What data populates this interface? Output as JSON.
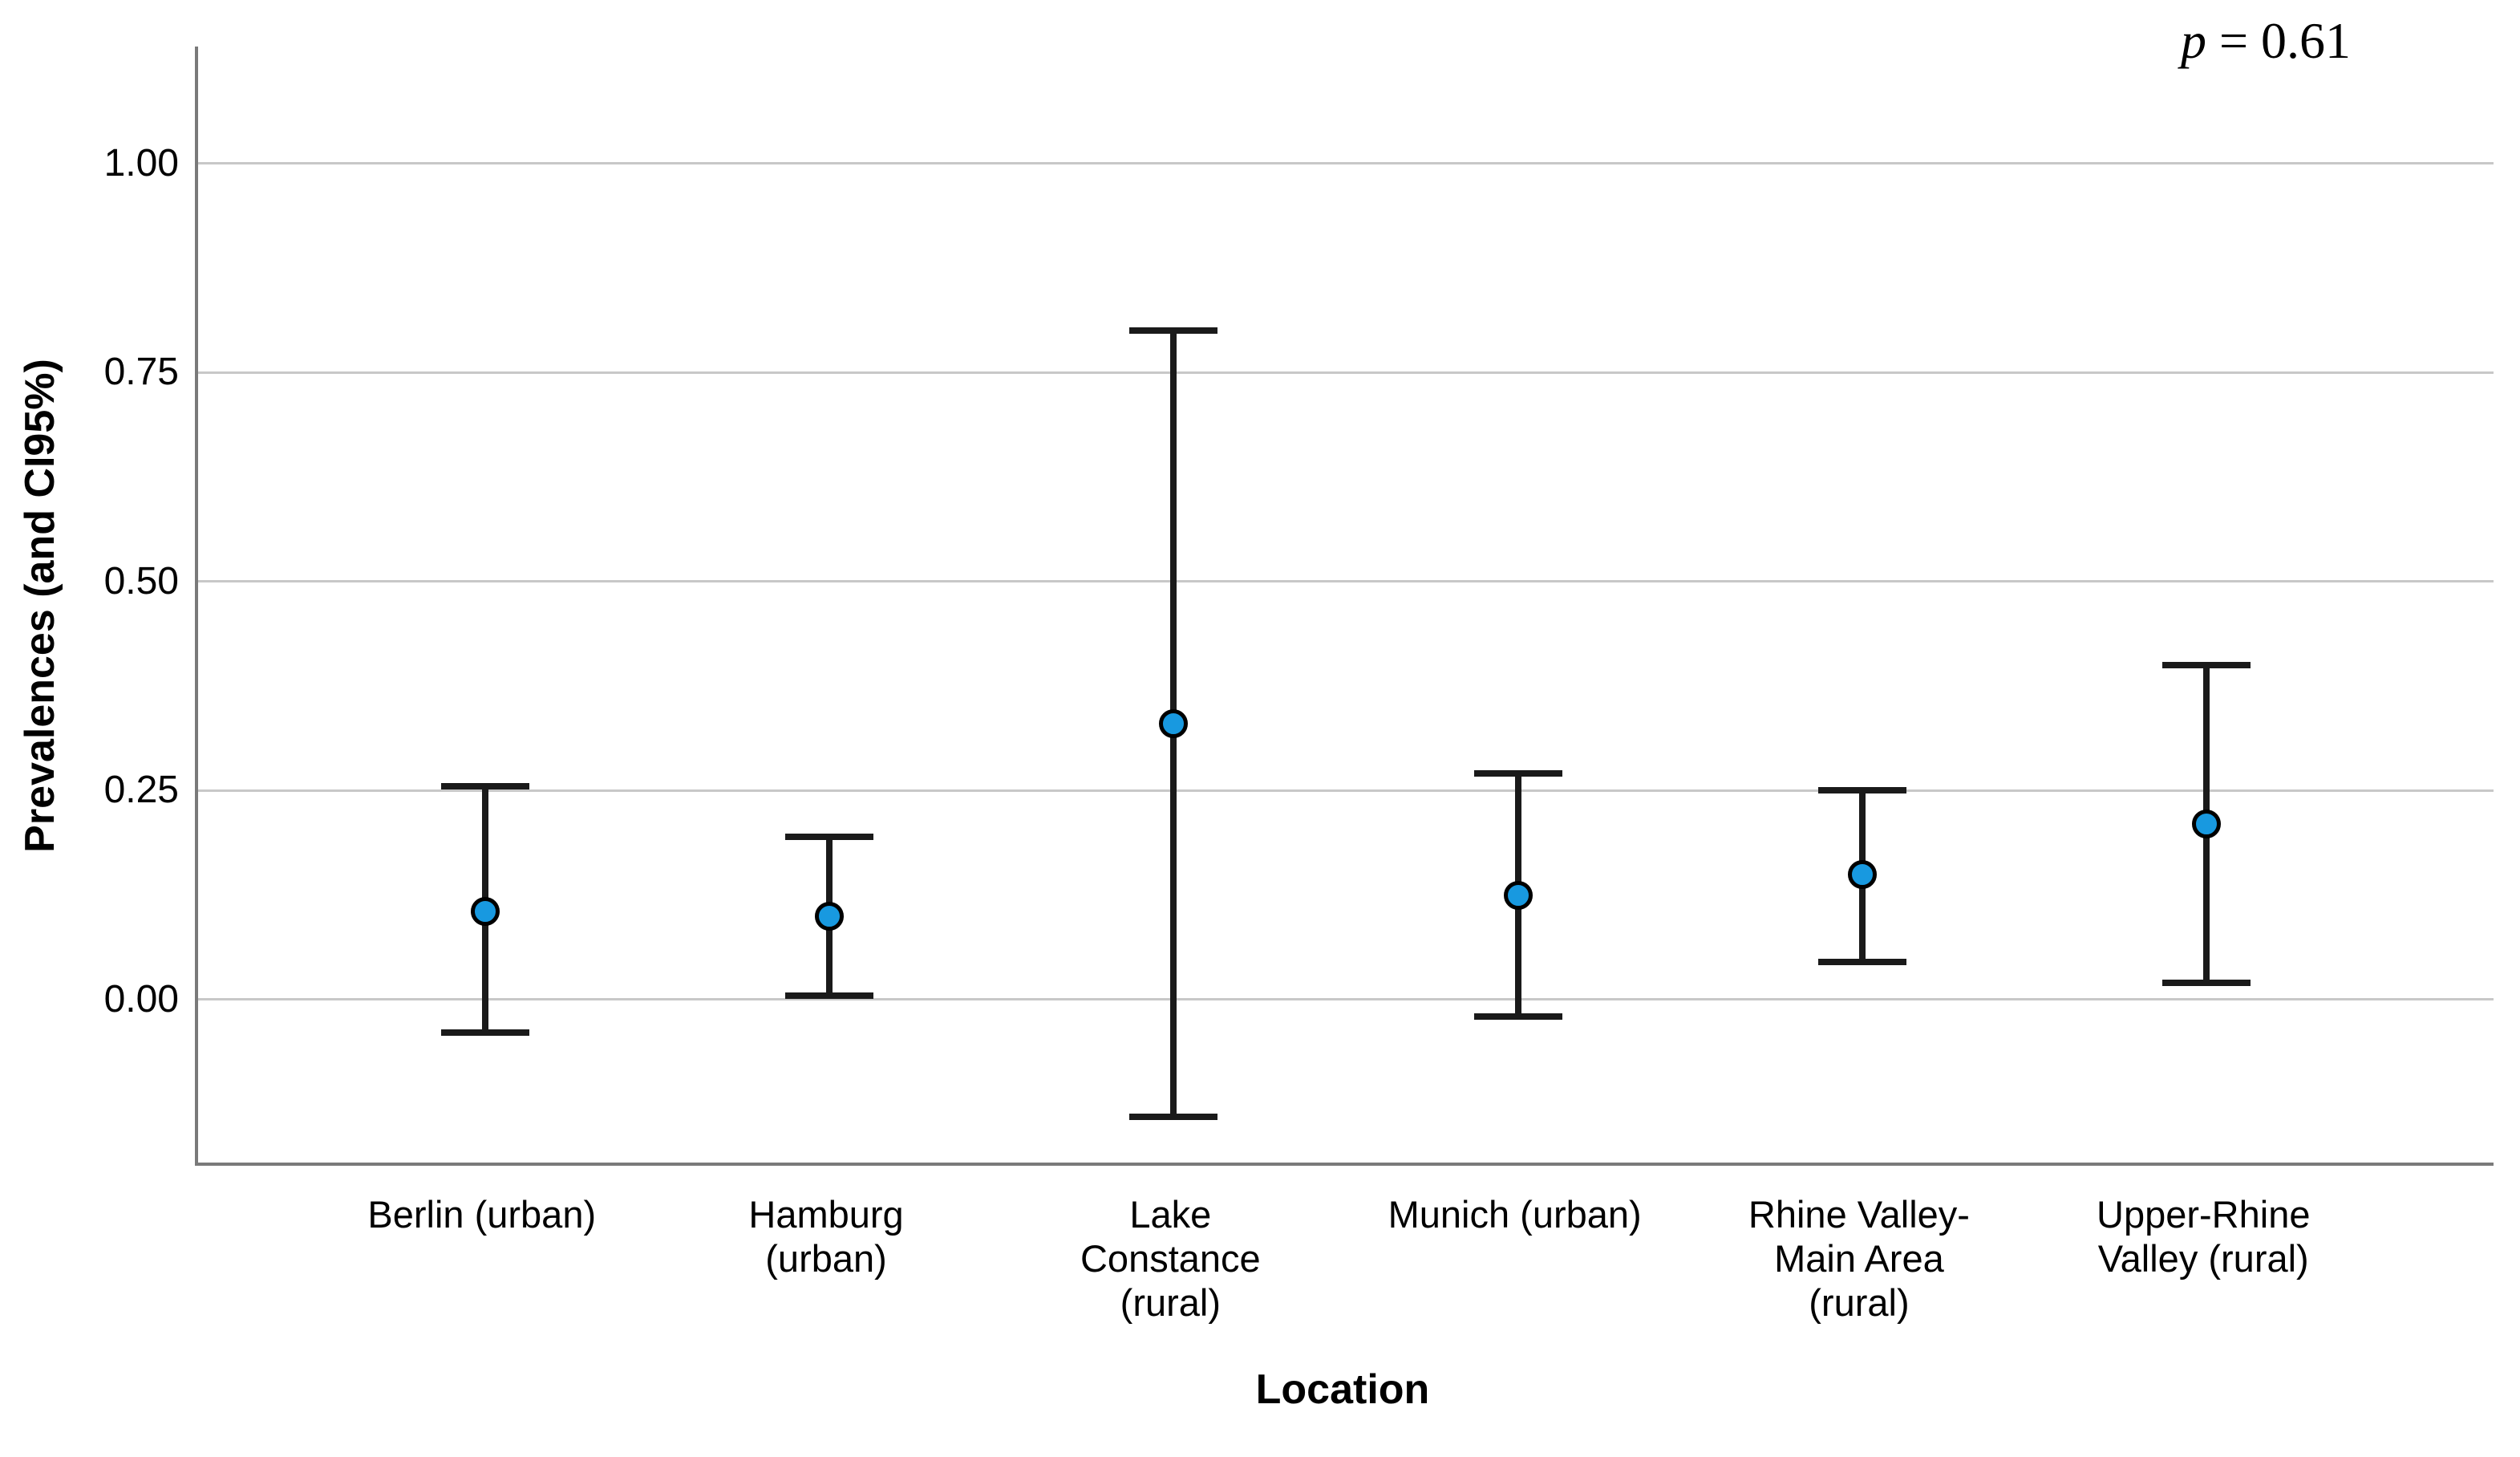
{
  "chart_data": {
    "type": "scatter",
    "subtype": "error-bar-plot",
    "annotation": {
      "text": "p = 0.61",
      "symbol": "p",
      "rest": " = 0.61"
    },
    "xlabel": "Location",
    "ylabel": "Prevalences (and CI95%)",
    "categories": [
      "Berlin (urban)",
      "Hamburg (urban)",
      "Lake Constance (rural)",
      "Munich (urban)",
      "Rhine Valley-Main Area (rural)",
      "Upper-Rhine Valley (rural)"
    ],
    "category_label_lines": [
      [
        "Berlin (urban)"
      ],
      [
        "Hamburg",
        "(urban)"
      ],
      [
        "Lake",
        "Constance",
        "(rural)"
      ],
      [
        "Munich (urban)"
      ],
      [
        "Rhine Valley-",
        "Main Area",
        "(rural)"
      ],
      [
        "Upper-Rhine",
        "Valley (rural)"
      ]
    ],
    "points": [
      {
        "category": "Berlin (urban)",
        "mean": 0.105,
        "ci_low": -0.04,
        "ci_high": 0.255
      },
      {
        "category": "Hamburg (urban)",
        "mean": 0.1,
        "ci_low": 0.005,
        "ci_high": 0.195
      },
      {
        "category": "Lake Constance (rural)",
        "mean": 0.33,
        "ci_low": -0.14,
        "ci_high": 0.8
      },
      {
        "category": "Munich (urban)",
        "mean": 0.125,
        "ci_low": -0.02,
        "ci_high": 0.27
      },
      {
        "category": "Rhine Valley-Main Area (rural)",
        "mean": 0.15,
        "ci_low": 0.045,
        "ci_high": 0.25
      },
      {
        "category": "Upper-Rhine Valley (rural)",
        "mean": 0.21,
        "ci_low": 0.02,
        "ci_high": 0.4
      }
    ],
    "y_ticks": [
      "1.00",
      "0.75",
      "0.50",
      "0.25",
      "0.00"
    ],
    "y_tick_values": [
      1.0,
      0.75,
      0.5,
      0.25,
      0.0
    ],
    "ylim": [
      -0.195,
      1.14
    ],
    "grid": true,
    "legend": "none",
    "colors": {
      "marker_fill": "#1899E0",
      "marker_edge": "#000000",
      "error_bar": "#1a1a1a",
      "gridline": "#c8c8c8",
      "axis_line": "#7a7a7a",
      "text": "#000000"
    }
  }
}
